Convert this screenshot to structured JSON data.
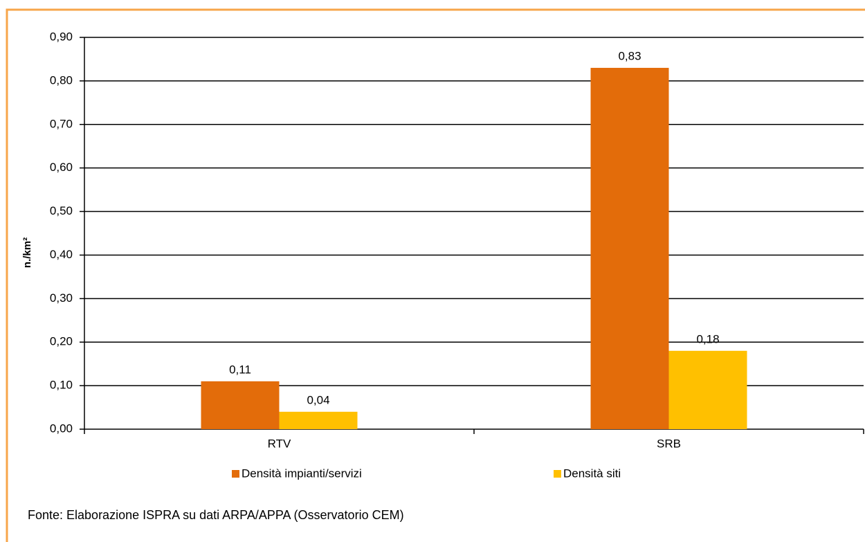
{
  "chart_data": {
    "type": "bar",
    "y_label": "n./km²",
    "categories": [
      "RTV",
      "SRB"
    ],
    "series": [
      {
        "name": "Densità impianti/servizi",
        "color": "#E36C0A",
        "values": [
          0.11,
          0.83
        ],
        "value_labels": [
          "0,11",
          "0,83"
        ]
      },
      {
        "name": "Densità siti",
        "color": "#FFC000",
        "values": [
          0.04,
          0.18
        ],
        "value_labels": [
          "0,04",
          "0,18"
        ]
      }
    ],
    "ylim": [
      0,
      0.9
    ],
    "yticks": [
      {
        "value": 0,
        "label": "0,00"
      },
      {
        "value": 0.1,
        "label": "0,10"
      },
      {
        "value": 0.2,
        "label": "0,20"
      },
      {
        "value": 0.3,
        "label": "0,30"
      },
      {
        "value": 0.4,
        "label": "0,40"
      },
      {
        "value": 0.5,
        "label": "0,50"
      },
      {
        "value": 0.6,
        "label": "0,60"
      },
      {
        "value": 0.7,
        "label": "0,70"
      },
      {
        "value": 0.8,
        "label": "0,80"
      },
      {
        "value": 0.9,
        "label": "0,90"
      }
    ],
    "grid": true,
    "legend": "bottom",
    "source": "Fonte: Elaborazione ISPRA su dati ARPA/APPA (Osservatorio CEM)"
  }
}
